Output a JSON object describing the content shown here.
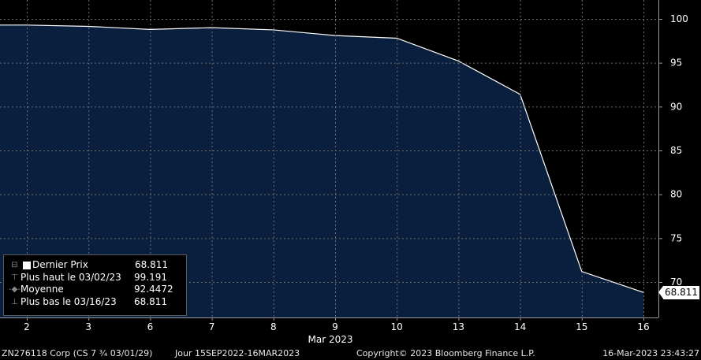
{
  "chart_data": {
    "type": "area",
    "x": [
      "2",
      "3",
      "6",
      "7",
      "8",
      "9",
      "10",
      "13",
      "14",
      "15",
      "16"
    ],
    "x_month_label": "Mar 2023",
    "series": [
      {
        "name": "Dernier Prix",
        "values": [
          99.3,
          99.15,
          98.8,
          99.0,
          98.75,
          98.1,
          97.8,
          95.2,
          91.4,
          71.2,
          68.811
        ]
      }
    ],
    "ylim": [
      66,
      102
    ],
    "yticks": [
      70,
      75,
      80,
      85,
      90,
      95,
      100
    ],
    "last_value_tag": "68.811",
    "grid": true,
    "area_color": "#0a1f3d",
    "line_color": "#ffffff",
    "legend_position": "bottom-left"
  },
  "legend": {
    "items": [
      {
        "marker": "swatch",
        "label": "Dernier Prix",
        "value": "68.811"
      },
      {
        "marker": "⊤",
        "label": "Plus haut le 03/02/23",
        "value": "99.191"
      },
      {
        "marker": "-◆-",
        "label": "Moyenne",
        "value": "92.4472"
      },
      {
        "marker": "⊥",
        "label": "Plus bas le 03/16/23",
        "value": "68.811"
      }
    ]
  },
  "footer": {
    "security": "ZN276118 Corp (CS 7 ¾ 03/01/29)",
    "period": "Jour 15SEP2022-16MAR2023",
    "copyright": "Copyright© 2023 Bloomberg Finance L.P.",
    "timestamp": "16-Mar-2023 23:43:27"
  }
}
